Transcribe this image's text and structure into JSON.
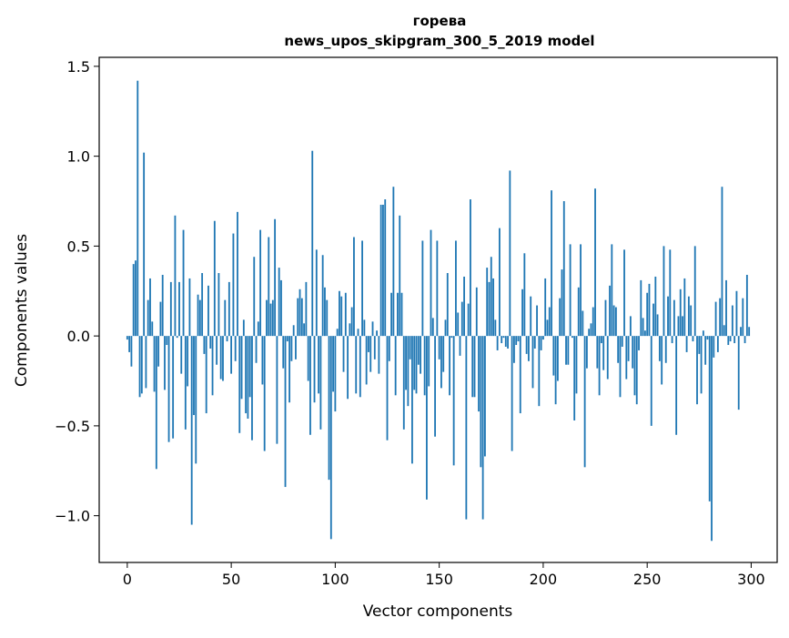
{
  "chart_data": {
    "type": "bar",
    "title": "горева",
    "subtitle": "news_upos_skipgram_300_5_2019 model",
    "xlabel": "Vector components",
    "ylabel": "Components values",
    "xlim": [
      -13.5,
      312.5
    ],
    "ylim": [
      -1.26,
      1.55
    ],
    "xticks": [
      0,
      50,
      100,
      150,
      200,
      250,
      300
    ],
    "yticks": [
      -1.0,
      -0.5,
      0.0,
      0.5,
      1.0,
      1.5
    ],
    "ytick_labels": [
      "−1.0",
      "−0.5",
      "0.0",
      "0.5",
      "1.0",
      "1.5"
    ],
    "grid": false,
    "bar_color": "#1f77b4",
    "values": [
      -0.02,
      -0.09,
      -0.17,
      0.4,
      0.42,
      1.42,
      -0.34,
      -0.32,
      1.02,
      -0.29,
      0.2,
      0.32,
      0.08,
      -0.31,
      -0.74,
      -0.17,
      0.19,
      0.34,
      -0.3,
      -0.05,
      -0.59,
      0.3,
      -0.57,
      0.67,
      -0.01,
      0.3,
      -0.21,
      0.59,
      -0.52,
      -0.28,
      0.32,
      -1.05,
      -0.44,
      -0.71,
      0.23,
      0.2,
      0.35,
      -0.1,
      -0.43,
      0.28,
      -0.07,
      -0.33,
      0.64,
      -0.16,
      0.35,
      -0.24,
      -0.25,
      0.2,
      -0.03,
      0.3,
      -0.21,
      0.57,
      -0.14,
      0.69,
      -0.54,
      -0.35,
      0.09,
      -0.43,
      -0.46,
      -0.34,
      -0.58,
      0.44,
      -0.15,
      0.08,
      0.59,
      -0.27,
      -0.64,
      0.2,
      0.55,
      0.18,
      0.2,
      0.65,
      -0.6,
      0.38,
      0.31,
      -0.18,
      -0.84,
      -0.03,
      -0.37,
      -0.14,
      0.06,
      -0.13,
      0.21,
      0.26,
      0.21,
      0.07,
      0.3,
      -0.25,
      -0.55,
      1.03,
      -0.37,
      0.48,
      -0.32,
      -0.52,
      0.45,
      0.27,
      0.2,
      -0.8,
      -1.13,
      -0.31,
      -0.42,
      0.04,
      0.25,
      0.22,
      -0.2,
      0.24,
      -0.35,
      0.07,
      0.16,
      0.55,
      -0.32,
      0.04,
      -0.34,
      0.53,
      0.09,
      -0.27,
      -0.09,
      -0.2,
      0.08,
      -0.13,
      0.03,
      -0.21,
      0.73,
      0.73,
      0.76,
      -0.58,
      -0.14,
      0.24,
      0.83,
      -0.33,
      0.24,
      0.67,
      0.24,
      -0.52,
      -0.3,
      -0.39,
      -0.13,
      -0.71,
      -0.3,
      -0.32,
      -0.16,
      -0.21,
      0.53,
      -0.33,
      -0.91,
      -0.28,
      0.59,
      0.1,
      -0.56,
      0.53,
      -0.13,
      -0.29,
      -0.2,
      0.09,
      0.35,
      -0.33,
      -0.01,
      -0.72,
      0.53,
      0.13,
      -0.11,
      0.19,
      0.33,
      -1.02,
      0.18,
      0.76,
      -0.34,
      -0.34,
      0.27,
      -0.42,
      -0.73,
      -1.02,
      -0.67,
      0.38,
      0.3,
      0.44,
      0.32,
      0.09,
      -0.08,
      0.6,
      -0.04,
      -0.01,
      -0.06,
      -0.07,
      0.92,
      -0.64,
      -0.15,
      -0.05,
      -0.03,
      -0.43,
      0.26,
      0.46,
      -0.1,
      -0.14,
      0.22,
      -0.29,
      -0.07,
      0.17,
      -0.39,
      -0.08,
      -0.02,
      0.32,
      0.09,
      0.16,
      0.81,
      -0.22,
      -0.38,
      -0.25,
      0.21,
      0.37,
      0.75,
      -0.16,
      -0.16,
      0.51,
      -0.01,
      -0.47,
      -0.32,
      0.27,
      0.51,
      0.14,
      -0.73,
      -0.18,
      0.04,
      0.07,
      0.16,
      0.82,
      -0.18,
      -0.33,
      -0.04,
      -0.19,
      0.2,
      -0.24,
      0.28,
      0.51,
      0.17,
      0.16,
      -0.15,
      -0.34,
      -0.06,
      0.48,
      -0.24,
      -0.14,
      0.11,
      -0.18,
      -0.33,
      -0.38,
      -0.08,
      0.31,
      0.1,
      0.03,
      0.24,
      0.29,
      -0.5,
      0.18,
      0.33,
      0.12,
      -0.14,
      -0.27,
      0.5,
      -0.15,
      0.22,
      0.48,
      -0.04,
      0.2,
      -0.55,
      0.11,
      0.26,
      0.11,
      0.32,
      -0.09,
      0.22,
      0.17,
      -0.03,
      0.5,
      -0.38,
      -0.1,
      -0.32,
      0.03,
      -0.16,
      -0.02,
      -0.92,
      -1.14,
      -0.12,
      0.19,
      -0.09,
      0.21,
      0.83,
      0.06,
      0.31,
      -0.05,
      -0.03,
      0.17,
      -0.04,
      0.25,
      -0.41,
      0.05,
      0.21,
      -0.04,
      0.34,
      0.05
    ]
  }
}
